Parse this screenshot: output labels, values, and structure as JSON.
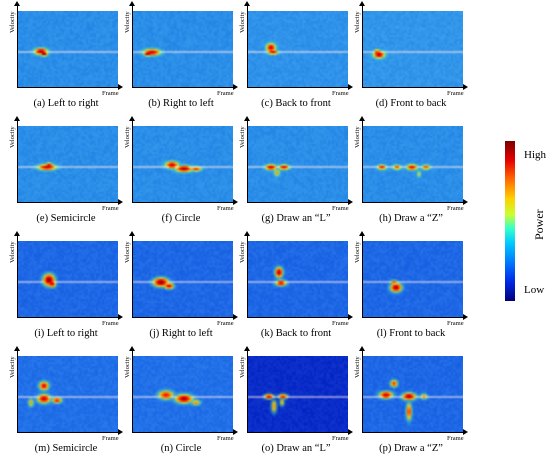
{
  "axis_labels": {
    "y": "Velocity",
    "x": "Frame"
  },
  "colorbar": {
    "title": "Power",
    "high_label": "High",
    "low_label": "Low",
    "colors": [
      "#7a0000",
      "#e60000",
      "#ff6a00",
      "#ffd000",
      "#30ffd0",
      "#00c8ff",
      "#0078ff",
      "#00007a"
    ]
  },
  "panels": [
    {
      "caption": "(a) Left to right",
      "gesture": "left-to-right",
      "bg": "#2b8ee8",
      "blobs": [
        [
          0.22,
          0.52,
          0.07,
          0.045,
          0.95
        ],
        [
          0.25,
          0.55,
          0.04,
          0.03,
          1.0
        ]
      ]
    },
    {
      "caption": "(b) Right to left",
      "gesture": "right-to-left",
      "bg": "#2b8ee8",
      "blobs": [
        [
          0.18,
          0.53,
          0.09,
          0.045,
          0.9
        ],
        [
          0.14,
          0.55,
          0.04,
          0.03,
          1.0
        ]
      ]
    },
    {
      "caption": "(c) Back to front",
      "gesture": "back-to-front",
      "bg": "#2f92ea",
      "blobs": [
        [
          0.22,
          0.47,
          0.05,
          0.06,
          0.9
        ],
        [
          0.24,
          0.53,
          0.06,
          0.03,
          0.85
        ]
      ]
    },
    {
      "caption": "(d) Front to back",
      "gesture": "front-to-back",
      "bg": "#3296ea",
      "blobs": [
        [
          0.15,
          0.56,
          0.06,
          0.05,
          0.95
        ],
        [
          0.13,
          0.52,
          0.03,
          0.03,
          0.8
        ]
      ]
    },
    {
      "caption": "(e) Semicircle",
      "gesture": "semicircle",
      "bg": "#2b8ee8",
      "blobs": [
        [
          0.28,
          0.53,
          0.1,
          0.04,
          0.9
        ],
        [
          0.3,
          0.5,
          0.04,
          0.03,
          0.85
        ]
      ]
    },
    {
      "caption": "(f) Circle",
      "gesture": "circle",
      "bg": "#2b8ee8",
      "blobs": [
        [
          0.38,
          0.5,
          0.07,
          0.05,
          0.9
        ],
        [
          0.5,
          0.55,
          0.09,
          0.045,
          0.95
        ],
        [
          0.62,
          0.55,
          0.06,
          0.035,
          0.75
        ]
      ]
    },
    {
      "caption": "(g) Draw an “L”",
      "gesture": "draw-L",
      "bg": "#2b8ee8",
      "blobs": [
        [
          0.22,
          0.53,
          0.06,
          0.04,
          0.9
        ],
        [
          0.35,
          0.53,
          0.06,
          0.035,
          0.85
        ],
        [
          0.28,
          0.6,
          0.03,
          0.05,
          0.6
        ]
      ]
    },
    {
      "caption": "(h) Draw a “Z”",
      "gesture": "draw-Z",
      "bg": "#2b8ee8",
      "blobs": [
        [
          0.18,
          0.53,
          0.05,
          0.035,
          0.8
        ],
        [
          0.33,
          0.53,
          0.05,
          0.035,
          0.7
        ],
        [
          0.48,
          0.53,
          0.06,
          0.04,
          0.85
        ],
        [
          0.62,
          0.53,
          0.05,
          0.035,
          0.7
        ],
        [
          0.55,
          0.62,
          0.02,
          0.05,
          0.5
        ]
      ]
    },
    {
      "caption": "(i) Left to right",
      "gesture": "left-to-right",
      "bg": "#1e68e6",
      "blobs": [
        [
          0.3,
          0.5,
          0.06,
          0.08,
          1.0
        ],
        [
          0.33,
          0.55,
          0.04,
          0.05,
          0.9
        ]
      ]
    },
    {
      "caption": "(j) Right to left",
      "gesture": "right-to-left",
      "bg": "#1e68e6",
      "blobs": [
        [
          0.27,
          0.53,
          0.08,
          0.06,
          1.0
        ],
        [
          0.35,
          0.58,
          0.05,
          0.04,
          0.9
        ]
      ]
    },
    {
      "caption": "(k) Back to front",
      "gesture": "back-to-front",
      "bg": "#1e68e6",
      "blobs": [
        [
          0.3,
          0.4,
          0.04,
          0.07,
          0.95
        ],
        [
          0.32,
          0.54,
          0.06,
          0.04,
          0.85
        ]
      ]
    },
    {
      "caption": "(l) Front to back",
      "gesture": "front-to-back",
      "bg": "#1e68e6",
      "blobs": [
        [
          0.32,
          0.6,
          0.06,
          0.06,
          0.95
        ],
        [
          0.3,
          0.53,
          0.04,
          0.03,
          0.7
        ]
      ]
    },
    {
      "caption": "(m) Semicircle",
      "gesture": "semicircle",
      "bg": "#2270e8",
      "blobs": [
        [
          0.25,
          0.38,
          0.05,
          0.06,
          0.85
        ],
        [
          0.25,
          0.55,
          0.07,
          0.06,
          0.9
        ],
        [
          0.38,
          0.57,
          0.05,
          0.04,
          0.8
        ],
        [
          0.12,
          0.6,
          0.03,
          0.06,
          0.55
        ]
      ]
    },
    {
      "caption": "(n) Circle",
      "gesture": "circle",
      "bg": "#2270e8",
      "blobs": [
        [
          0.32,
          0.5,
          0.08,
          0.06,
          0.8
        ],
        [
          0.5,
          0.55,
          0.09,
          0.06,
          0.95
        ],
        [
          0.62,
          0.6,
          0.05,
          0.04,
          0.6
        ]
      ]
    },
    {
      "caption": "(o) Draw an “L”",
      "gesture": "draw-L",
      "bg": "#0a2cc8",
      "blobs": [
        [
          0.2,
          0.52,
          0.05,
          0.035,
          0.85
        ],
        [
          0.34,
          0.52,
          0.05,
          0.035,
          0.8
        ],
        [
          0.25,
          0.65,
          0.03,
          0.09,
          0.6
        ],
        [
          0.33,
          0.6,
          0.025,
          0.05,
          0.55
        ]
      ]
    },
    {
      "caption": "(p) Draw a “Z”",
      "gesture": "draw-Z",
      "bg": "#1e68e6",
      "blobs": [
        [
          0.22,
          0.5,
          0.07,
          0.05,
          0.9
        ],
        [
          0.45,
          0.52,
          0.07,
          0.05,
          0.95
        ],
        [
          0.3,
          0.35,
          0.04,
          0.05,
          0.75
        ],
        [
          0.45,
          0.72,
          0.03,
          0.12,
          0.75
        ],
        [
          0.6,
          0.52,
          0.04,
          0.04,
          0.6
        ]
      ]
    }
  ]
}
